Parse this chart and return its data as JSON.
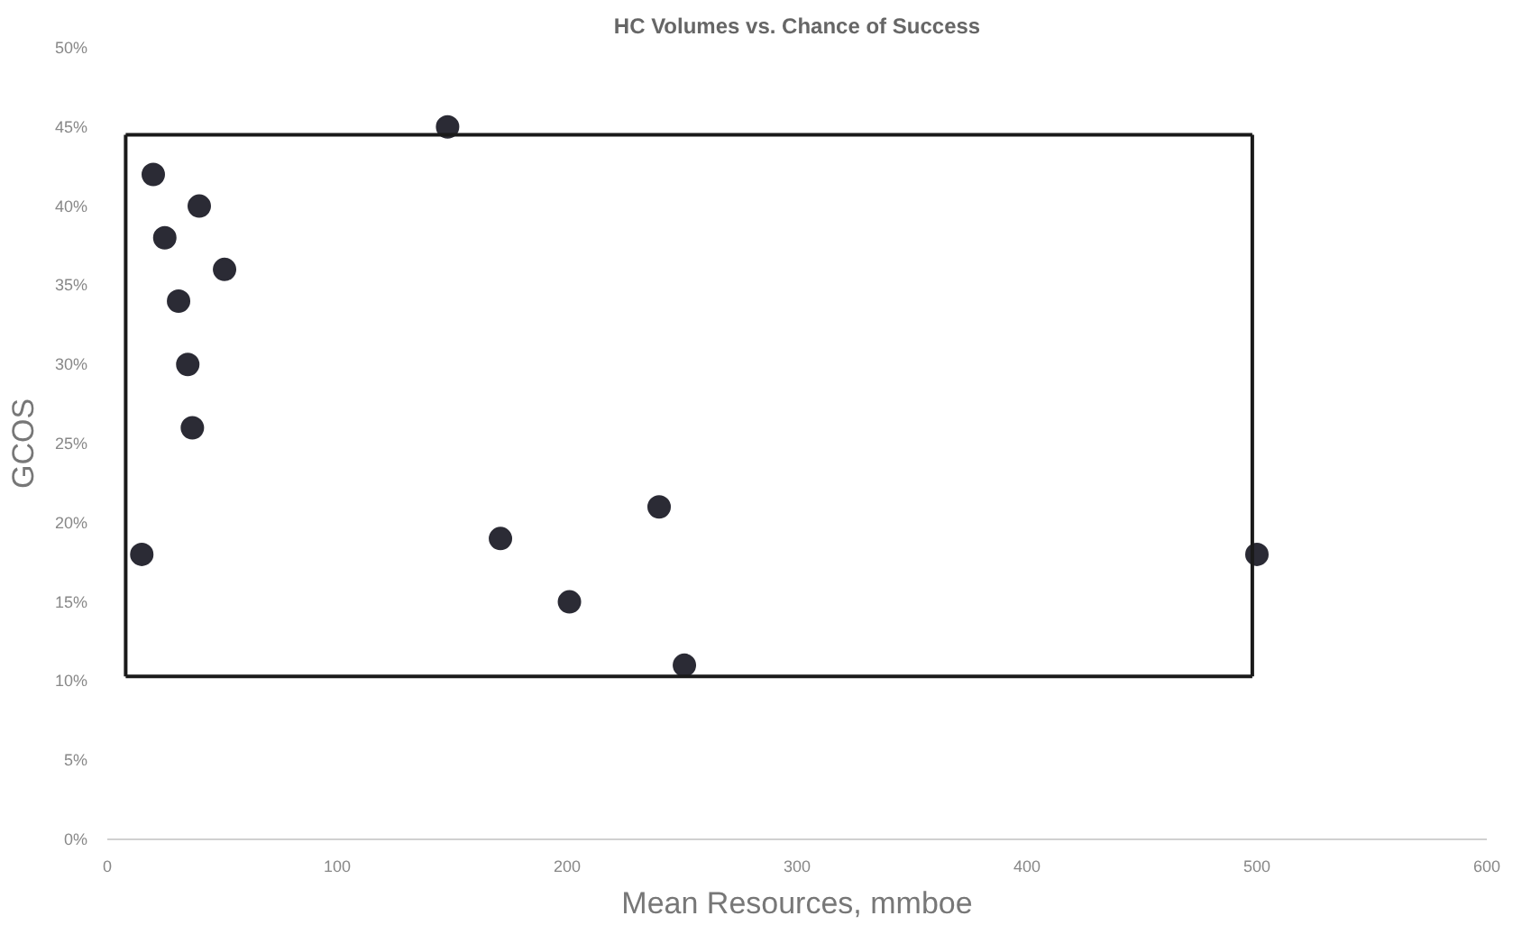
{
  "chart_data": {
    "type": "scatter",
    "title": "HC Volumes vs. Chance of Success",
    "xlabel": "Mean Resources, mmboe",
    "ylabel": "GCOS",
    "series": [
      {
        "color": "#2b2b35",
        "x": [
          15,
          20,
          25,
          31,
          35,
          37,
          40,
          51,
          148,
          171,
          201,
          240,
          251,
          500
        ],
        "values": [
          18,
          42,
          38,
          34,
          30,
          26,
          40,
          36,
          45,
          19,
          15,
          21,
          11,
          18
        ]
      },
      {
        "type": "line",
        "marker": "none",
        "color": "#1a1a1a",
        "x": [
          8,
          498
        ],
        "values": [
          44.5,
          44.5
        ]
      },
      {
        "type": "line",
        "marker": "none",
        "color": "#1a1a1a",
        "x": [
          8,
          498
        ],
        "values": [
          10.3,
          10.3
        ]
      },
      {
        "type": "line",
        "marker": "none",
        "color": "#1a1a1a",
        "x": [
          8,
          8
        ],
        "values": [
          10.3,
          44.5
        ]
      },
      {
        "type": "line",
        "marker": "none",
        "color": "#1a1a1a",
        "x": [
          498,
          498
        ],
        "values": [
          10.3,
          44.5
        ]
      }
    ],
    "xlim": [
      0,
      600
    ],
    "xticks": [
      0,
      100,
      200,
      300,
      400,
      500,
      600
    ],
    "ylim": [
      0,
      50
    ],
    "yticks": [
      {
        "value": 0,
        "label": "0%"
      },
      {
        "value": 5,
        "label": "5%"
      },
      {
        "value": 10,
        "label": "10%"
      },
      {
        "value": 15,
        "label": "15%"
      },
      {
        "value": 20,
        "label": "20%"
      },
      {
        "value": 25,
        "label": "25%"
      },
      {
        "value": 30,
        "label": "30%"
      },
      {
        "value": 35,
        "label": "35%"
      },
      {
        "value": 40,
        "label": "40%"
      },
      {
        "value": 45,
        "label": "45%"
      },
      {
        "value": 50,
        "label": "50%"
      }
    ],
    "grid": false,
    "marker": "circle",
    "line_style": "solid"
  }
}
